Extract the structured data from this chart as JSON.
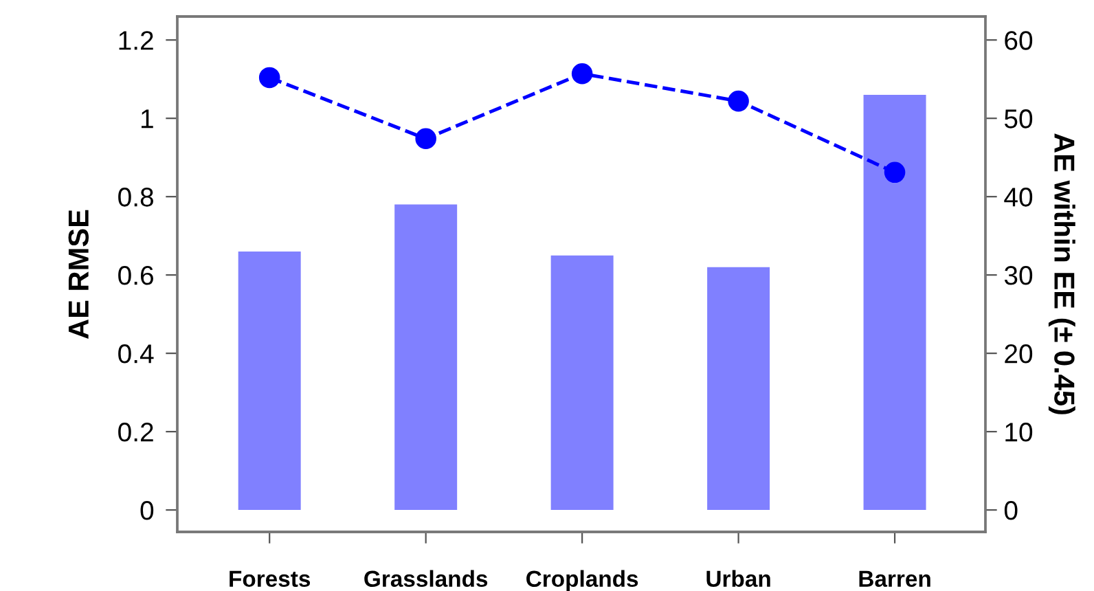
{
  "chart_data": {
    "type": "bar",
    "categories": [
      "Forests",
      "Grasslands",
      "Croplands",
      "Urban",
      "Barren"
    ],
    "ylabel": "AE RMSE",
    "y2label": "AE within EE (± 0.45)",
    "ylim": [
      -0.056,
      1.26
    ],
    "yticks": [
      0,
      0.2,
      0.4,
      0.6,
      0.8,
      {
        "value": 1,
        "label": "1"
      },
      1.2
    ],
    "y2lim": [
      -2.8,
      63
    ],
    "y2ticks": [
      0,
      10,
      20,
      30,
      40,
      50,
      60
    ],
    "grid": false,
    "legend": false,
    "series": [
      {
        "color": "#8080ff",
        "values": [
          0.66,
          0.78,
          0.65,
          0.62,
          1.06
        ]
      },
      {
        "type": "line",
        "axis": "y2",
        "color": "#0000ff",
        "marker": "circle",
        "line_style": "dashed",
        "values": [
          55.2,
          47.4,
          55.7,
          52.2,
          43.1
        ]
      }
    ]
  }
}
